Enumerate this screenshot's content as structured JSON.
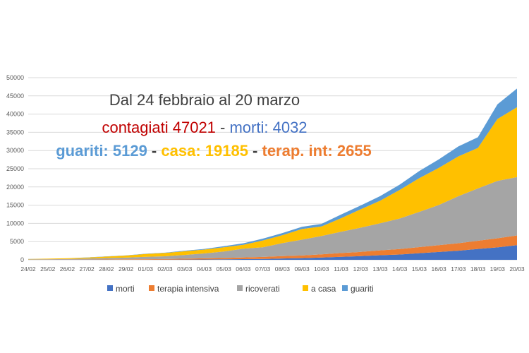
{
  "chart_data": {
    "type": "area",
    "stacked": true,
    "categories": [
      "24/02",
      "25/02",
      "26/02",
      "27/02",
      "28/02",
      "29/02",
      "01/03",
      "02/03",
      "03/03",
      "04/03",
      "05/03",
      "06/03",
      "07/03",
      "08/03",
      "09/03",
      "10/03",
      "11/03",
      "12/03",
      "13/03",
      "14/03",
      "15/03",
      "16/03",
      "17/03",
      "18/03",
      "19/03",
      "20/03"
    ],
    "ylim": [
      0,
      50000
    ],
    "yticks": [
      0,
      5000,
      10000,
      15000,
      20000,
      25000,
      30000,
      35000,
      40000,
      45000,
      50000
    ],
    "grid": true,
    "legend_position": "bottom",
    "series": [
      {
        "name": "morti",
        "color": "#4472C4",
        "values": [
          7,
          10,
          12,
          17,
          21,
          29,
          34,
          52,
          79,
          107,
          148,
          197,
          233,
          366,
          463,
          631,
          827,
          1016,
          1266,
          1441,
          1809,
          2158,
          2503,
          2978,
          3405,
          4032
        ]
      },
      {
        "name": "terapia intensiva",
        "color": "#ED7D31",
        "values": [
          27,
          35,
          36,
          56,
          64,
          105,
          140,
          166,
          229,
          295,
          351,
          462,
          567,
          650,
          733,
          877,
          1028,
          1153,
          1328,
          1518,
          1672,
          1851,
          2060,
          2257,
          2498,
          2655
        ]
      },
      {
        "name": "ricoverati",
        "color": "#A5A5A5",
        "values": [
          101,
          114,
          162,
          258,
          401,
          480,
          639,
          742,
          1034,
          1346,
          1790,
          2394,
          2651,
          3557,
          4316,
          5038,
          5838,
          6650,
          7426,
          8372,
          9663,
          11025,
          12894,
          14363,
          15757,
          16020
        ]
      },
      {
        "name": "a casa",
        "color": "#FFC000",
        "values": [
          94,
          162,
          221,
          284,
          412,
          543,
          798,
          927,
          1000,
          1065,
          1155,
          1060,
          1843,
          2180,
          2936,
          2599,
          3724,
          5036,
          6201,
          7860,
          9268,
          10197,
          10928,
          11108,
          17000,
          19185
        ]
      },
      {
        "name": "guariti",
        "color": "#5B9BD5",
        "values": [
          1,
          1,
          3,
          45,
          46,
          46,
          50,
          83,
          149,
          160,
          276,
          414,
          523,
          589,
          622,
          724,
          1004,
          1045,
          1258,
          1439,
          1966,
          2335,
          2749,
          2941,
          4025,
          5129
        ]
      }
    ],
    "annotation": {
      "line1": "Dal 24 febbraio al 20 marzo",
      "line2": [
        {
          "text": "contagiati 47021",
          "color": "#C00000"
        },
        {
          "text": " - ",
          "color": "#404040"
        },
        {
          "text": "morti: 4032",
          "color": "#4472C4"
        }
      ],
      "line3": [
        {
          "text": "guariti: 5129",
          "color": "#5B9BD5"
        },
        {
          "text": " - ",
          "color": "#404040"
        },
        {
          "text": "casa: 19185",
          "color": "#FFC000"
        },
        {
          "text": " - ",
          "color": "#404040"
        },
        {
          "text": "terap. int: 2655",
          "color": "#ED7D31"
        }
      ]
    }
  }
}
